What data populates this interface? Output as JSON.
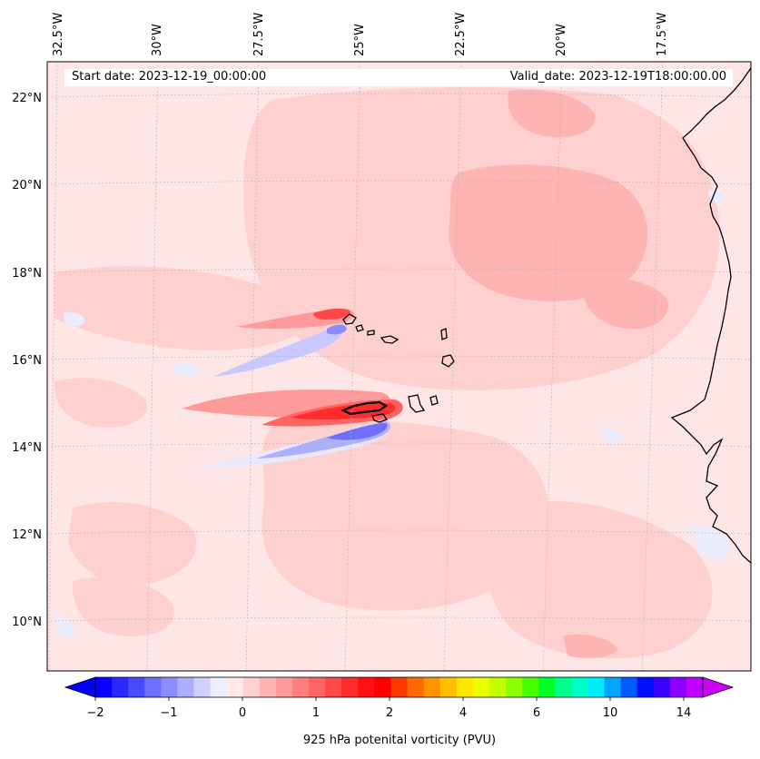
{
  "header": {
    "start_date": "Start date: 2023-12-19_00:00:00",
    "valid_date": "Valid_date: 2023-12-19T18:00:00.00"
  },
  "axes": {
    "lon_labels": [
      "32.5°W",
      "30°W",
      "27.5°W",
      "25°W",
      "22.5°W",
      "20°W",
      "17.5°W"
    ],
    "lat_labels": [
      "22°N",
      "20°N",
      "18°N",
      "16°N",
      "14°N",
      "12°N",
      "10°N"
    ]
  },
  "colorbar": {
    "label": "925 hPa potenital vorticity (PVU)",
    "tick_labels": [
      "−2",
      "−1",
      "0",
      "1",
      "2",
      "4",
      "6",
      "10",
      "14"
    ],
    "colors": [
      "#0a00ff",
      "#2828ff",
      "#4a4aff",
      "#6e6eff",
      "#8c8cff",
      "#aeaeff",
      "#d0d0ff",
      "#eeeeff",
      "#ffe8e8",
      "#ffd0d0",
      "#ffb4b4",
      "#ff9a9a",
      "#ff7e7e",
      "#ff6464",
      "#ff4848",
      "#ff2c2c",
      "#ff1010",
      "#ff0000",
      "#ff3a00",
      "#ff6a00",
      "#ff9400",
      "#ffbe00",
      "#ffe600",
      "#eaff00",
      "#c0ff00",
      "#8cff00",
      "#46ff00",
      "#00ff28",
      "#00ff8c",
      "#00ffc8",
      "#00ecff",
      "#00a6ff",
      "#005aff",
      "#0010ff",
      "#3c00ff",
      "#8c00ff",
      "#c000ff"
    ],
    "extend_low_color": "#0000ff",
    "extend_high_color": "#cc00ff"
  },
  "map": {
    "background_color": "#ffe6e6",
    "pv_features": [
      {
        "name": "positive PV streak south of Cabo Verde",
        "value_pvu": 2.0
      },
      {
        "name": "negative PV streak south of Cabo Verde",
        "value_pvu": -0.8
      },
      {
        "name": "positive PV streak north of Cabo Verde",
        "value_pvu": 1.4
      },
      {
        "name": "negative PV streak north of Cabo Verde",
        "value_pvu": -0.6
      }
    ]
  }
}
